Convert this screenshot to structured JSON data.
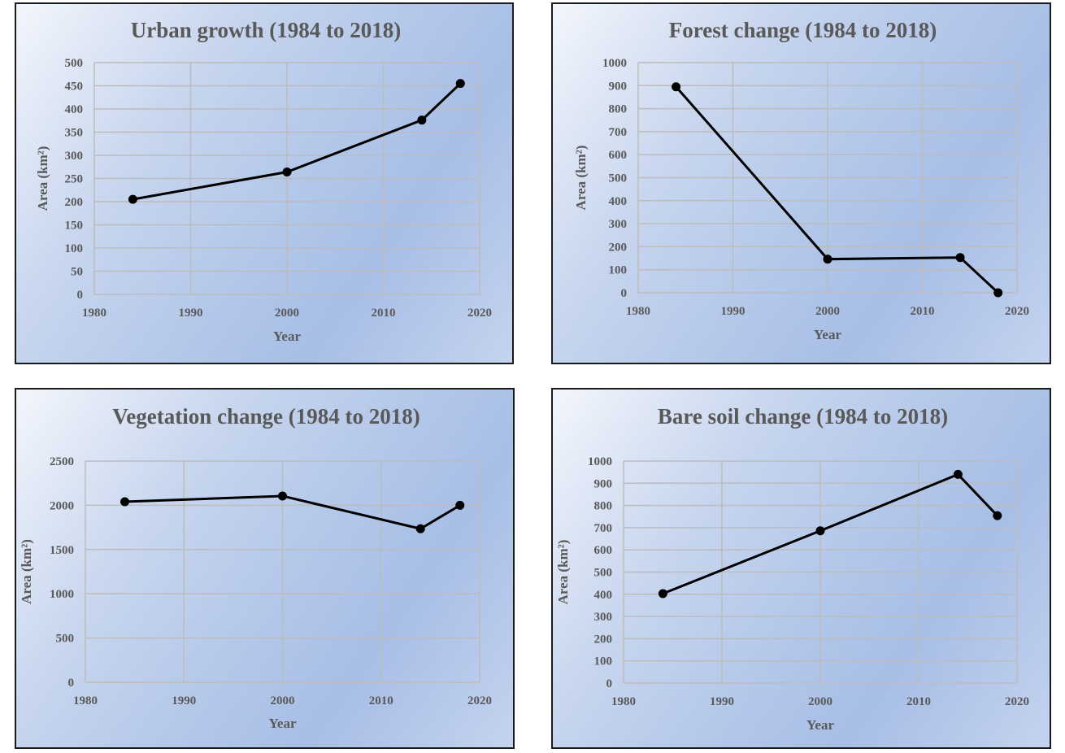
{
  "charts": [
    {
      "type": "line",
      "title": "Urban growth (1984 to 2018)",
      "xlabel": "Year",
      "ylabel": "Area (km²)",
      "xlim": [
        1980,
        2020
      ],
      "xticks": [
        1980,
        1990,
        2000,
        2010,
        2020
      ],
      "ylim": [
        0,
        500
      ],
      "yticks": [
        0,
        50,
        100,
        150,
        200,
        250,
        300,
        350,
        400,
        450,
        500
      ],
      "grid": true,
      "x": [
        1984,
        2000,
        2014,
        2018
      ],
      "y": [
        205,
        264,
        376,
        455
      ]
    },
    {
      "type": "line",
      "title": "Forest change (1984 to 2018)",
      "xlabel": "Year",
      "ylabel": "Area (km²)",
      "xlim": [
        1980,
        2020
      ],
      "xticks": [
        1980,
        1990,
        2000,
        2010,
        2020
      ],
      "ylim": [
        0,
        1000
      ],
      "yticks": [
        0,
        100,
        200,
        300,
        400,
        500,
        600,
        700,
        800,
        900,
        1000
      ],
      "grid": true,
      "x": [
        1984,
        2000,
        2014,
        2018
      ],
      "y": [
        895,
        146,
        153,
        0
      ]
    },
    {
      "type": "line",
      "title": "Vegetation change (1984 to 2018)",
      "xlabel": "Year",
      "ylabel": "Area (km²)",
      "xlim": [
        1980,
        2020
      ],
      "xticks": [
        1980,
        1990,
        2000,
        2010,
        2020
      ],
      "ylim": [
        0,
        2500
      ],
      "yticks": [
        0,
        500,
        1000,
        1500,
        2000,
        2500
      ],
      "grid": true,
      "x": [
        1984,
        2000,
        2014,
        2018
      ],
      "y": [
        2040,
        2105,
        1735,
        2000
      ]
    },
    {
      "type": "line",
      "title": "Bare soil change (1984 to 2018)",
      "xlabel": "Year",
      "ylabel": "Area (km²)",
      "xlim": [
        1980,
        2020
      ],
      "xticks": [
        1980,
        1990,
        2000,
        2010,
        2020
      ],
      "ylim": [
        0,
        1000
      ],
      "yticks": [
        0,
        100,
        200,
        300,
        400,
        500,
        600,
        700,
        800,
        900,
        1000
      ],
      "grid": true,
      "x": [
        1984,
        2000,
        2014,
        2018
      ],
      "y": [
        403,
        686,
        940,
        754
      ]
    }
  ],
  "colors": {
    "line": "#000000",
    "marker": "#000000",
    "grid": "#bcbcbc",
    "text": "#595959",
    "border": "#1a1a1a"
  }
}
